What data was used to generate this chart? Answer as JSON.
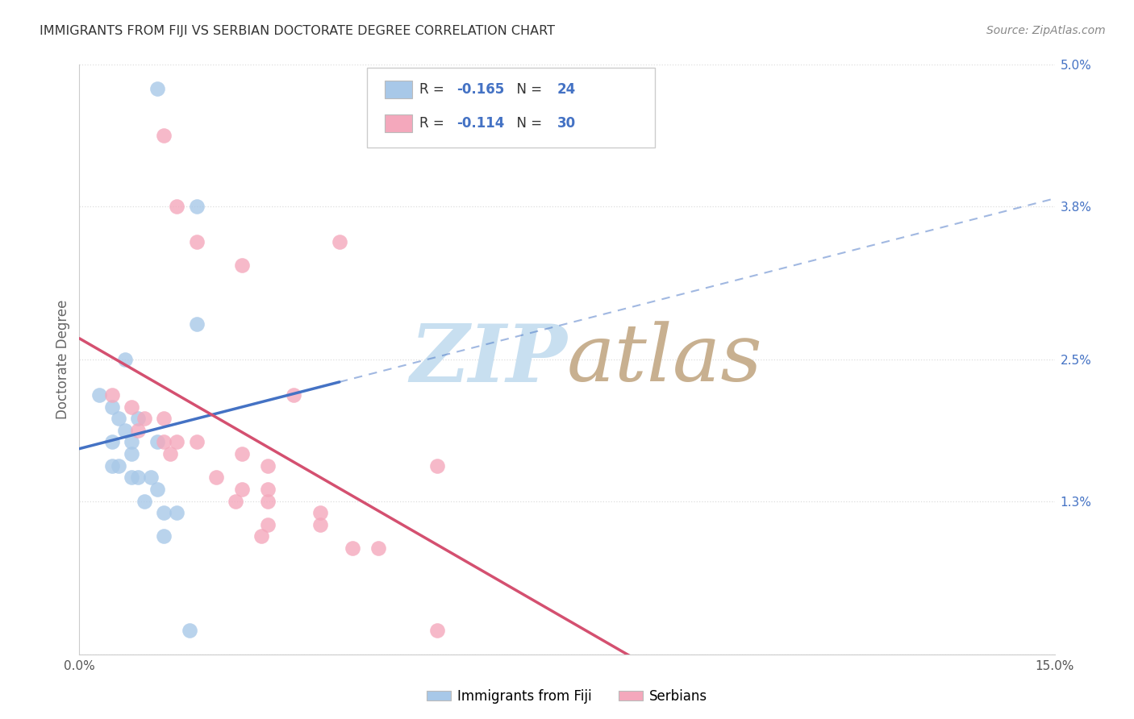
{
  "title": "IMMIGRANTS FROM FIJI VS SERBIAN DOCTORATE DEGREE CORRELATION CHART",
  "source": "Source: ZipAtlas.com",
  "ylabel": "Doctorate Degree",
  "xlim": [
    0,
    0.15
  ],
  "ylim": [
    0,
    0.05
  ],
  "ytick_positions": [
    0.013,
    0.025,
    0.038,
    0.05
  ],
  "ytick_labels": [
    "1.3%",
    "2.5%",
    "3.8%",
    "5.0%"
  ],
  "xtick_positions": [
    0.0,
    0.05,
    0.1,
    0.15
  ],
  "xtick_labels": [
    "0.0%",
    "",
    "",
    "15.0%"
  ],
  "fiji_color": "#a8c8e8",
  "serbian_color": "#f4a8bc",
  "fiji_line_color": "#4472c4",
  "serbian_line_color": "#d45070",
  "watermark_zip_color": "#c8dff0",
  "watermark_atlas_color": "#c8b090",
  "legend_fiji_label": "R = -0.165   N = 24",
  "legend_serbian_label": "R = -0.114   N = 30",
  "bottom_legend_fiji": "Immigrants from Fiji",
  "bottom_legend_serbian": "Serbians",
  "fiji_points_x": [
    0.012,
    0.018,
    0.018,
    0.007,
    0.003,
    0.005,
    0.006,
    0.009,
    0.007,
    0.005,
    0.008,
    0.012,
    0.008,
    0.005,
    0.006,
    0.008,
    0.009,
    0.011,
    0.012,
    0.01,
    0.013,
    0.015,
    0.013,
    0.017
  ],
  "fiji_points_y": [
    0.048,
    0.038,
    0.028,
    0.025,
    0.022,
    0.021,
    0.02,
    0.02,
    0.019,
    0.018,
    0.018,
    0.018,
    0.017,
    0.016,
    0.016,
    0.015,
    0.015,
    0.015,
    0.014,
    0.013,
    0.012,
    0.012,
    0.01,
    0.002
  ],
  "serbian_points_x": [
    0.013,
    0.015,
    0.018,
    0.025,
    0.033,
    0.04,
    0.005,
    0.008,
    0.01,
    0.013,
    0.009,
    0.013,
    0.015,
    0.018,
    0.014,
    0.025,
    0.029,
    0.021,
    0.025,
    0.029,
    0.024,
    0.029,
    0.037,
    0.029,
    0.037,
    0.028,
    0.042,
    0.046,
    0.055,
    0.055
  ],
  "serbian_points_y": [
    0.044,
    0.038,
    0.035,
    0.033,
    0.022,
    0.035,
    0.022,
    0.021,
    0.02,
    0.02,
    0.019,
    0.018,
    0.018,
    0.018,
    0.017,
    0.017,
    0.016,
    0.015,
    0.014,
    0.014,
    0.013,
    0.013,
    0.012,
    0.011,
    0.011,
    0.01,
    0.009,
    0.009,
    0.002,
    0.016
  ],
  "background_color": "#ffffff",
  "grid_color": "#dddddd",
  "title_color": "#333333",
  "source_color": "#888888",
  "axis_label_color": "#666666",
  "right_tick_color": "#4472c4"
}
